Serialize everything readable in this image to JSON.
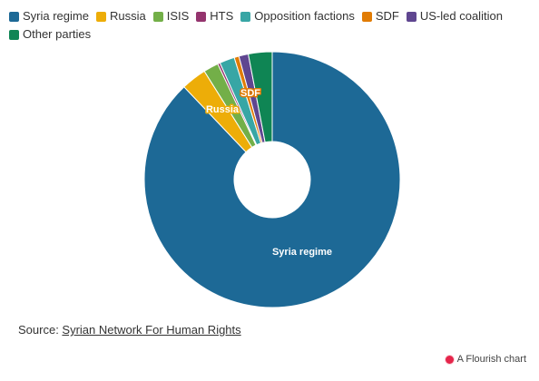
{
  "chart_data": {
    "type": "pie",
    "donut": true,
    "legend_position": "top-left",
    "categories": [
      "Syria regime",
      "Russia",
      "ISIS",
      "HTS",
      "Opposition factions",
      "SDF",
      "US-led coalition",
      "Other parties"
    ],
    "values": [
      87.9,
      3.2,
      1.9,
      0.3,
      1.9,
      0.6,
      1.2,
      3.0
    ],
    "colors": [
      "#1d6996",
      "#edad08",
      "#73af48",
      "#94346e",
      "#38a6a5",
      "#e17c05",
      "#5f4690",
      "#0f8554"
    ],
    "slice_labels": {
      "Syria regime": "Syria regime",
      "Russia": "Russia",
      "SDF": "SDF"
    }
  },
  "source": {
    "prefix": "Source: ",
    "link_text": "Syrian Network For Human Rights"
  },
  "credit": "A Flourish chart"
}
